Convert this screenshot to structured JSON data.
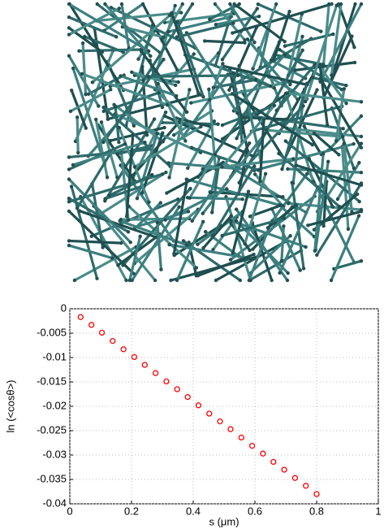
{
  "chart_data": {
    "type": "scatter",
    "xlabel": "s (μm)",
    "ylabel": "ln (<cosθ>)",
    "x": [
      0.035,
      0.07,
      0.104,
      0.139,
      0.174,
      0.209,
      0.243,
      0.278,
      0.313,
      0.348,
      0.382,
      0.417,
      0.452,
      0.487,
      0.521,
      0.556,
      0.591,
      0.626,
      0.66,
      0.695,
      0.73,
      0.765,
      0.8
    ],
    "values": [
      -0.0017,
      -0.0033,
      -0.0049,
      -0.0066,
      -0.0083,
      -0.0099,
      -0.0115,
      -0.0132,
      -0.0149,
      -0.0165,
      -0.0181,
      -0.0198,
      -0.0215,
      -0.0231,
      -0.0247,
      -0.0264,
      -0.0281,
      -0.0297,
      -0.0314,
      -0.033,
      -0.0347,
      -0.0363,
      -0.038
    ],
    "color": "#ff0000",
    "xlim": [
      0,
      1
    ],
    "xticks": [
      0,
      0.2,
      0.4,
      0.6,
      0.8,
      1
    ],
    "ylim": [
      -0.04,
      0
    ],
    "yticks": [
      0,
      -0.005,
      -0.01,
      -0.015,
      -0.02,
      -0.025,
      -0.03,
      -0.035,
      -0.04
    ],
    "grid": true
  }
}
